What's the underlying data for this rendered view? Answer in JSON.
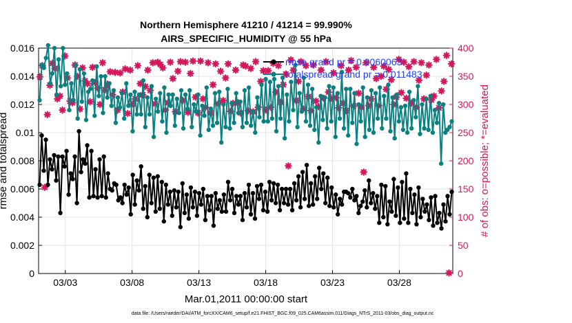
{
  "chart_data": {
    "type": "line",
    "title": "Northern Hemisphere 41210 / 41214 = 99.990%",
    "subtitle": "AIRS_SPECIFIC_HUMIDITY @ 55 hPa",
    "xlabel": "Mar.01,2011 00:00:00 start",
    "ylabel_left": "rmse and totalspread",
    "ylabel_right": "# of obs: o=possible; *=evaluated",
    "x_tick_labels": [
      "03/03",
      "03/08",
      "03/13",
      "03/18",
      "03/23",
      "03/28"
    ],
    "x_tick_days": [
      2,
      7,
      12,
      17,
      22,
      27
    ],
    "xlim_days": [
      0,
      31
    ],
    "ylim_left": [
      0,
      0.016
    ],
    "y_left_ticks": [
      "0",
      "0.002",
      "0.004",
      "0.006",
      "0.008",
      "0.01",
      "0.012",
      "0.014",
      "0.016"
    ],
    "ylim_right": [
      0,
      400
    ],
    "y_right_ticks": [
      "0",
      "50",
      "100",
      "150",
      "200",
      "250",
      "300",
      "350",
      "400"
    ],
    "grid": true,
    "legend_position": "top-right",
    "colors": {
      "rmse": "#000000",
      "spread": "#0a8080",
      "obs": "#d4175c",
      "legend_text": "#1f3fff"
    },
    "series": [
      {
        "name": "rmse grand pr = 0.0060063",
        "axis": "left",
        "color": "#000000",
        "y": [
          0.0063,
          0.0098,
          0.0073,
          0.0095,
          0.0063,
          0.0081,
          0.0074,
          0.0084,
          0.0066,
          0.0083,
          0.0043,
          0.0083,
          0.0076,
          0.0087,
          0.0056,
          0.0071,
          0.0067,
          0.0083,
          0.005,
          0.0101,
          0.0072,
          0.0081,
          0.0078,
          0.0091,
          0.0054,
          0.0087,
          0.0055,
          0.0074,
          0.0054,
          0.0081,
          0.0055,
          0.0083,
          0.0054,
          0.0071,
          0.006,
          0.0059,
          0.0064,
          0.0063,
          0.0052,
          0.0054,
          0.005,
          0.0063,
          0.0056,
          0.0061,
          0.0042,
          0.007,
          0.0049,
          0.0066,
          0.0059,
          0.0076,
          0.0046,
          0.0062,
          0.004,
          0.007,
          0.005,
          0.0068,
          0.0044,
          0.0069,
          0.0046,
          0.0065,
          0.0037,
          0.0063,
          0.0049,
          0.0058,
          0.0041,
          0.0059,
          0.0047,
          0.0058,
          0.0033,
          0.0064,
          0.0043,
          0.0056,
          0.0039,
          0.0061,
          0.0047,
          0.0058,
          0.0041,
          0.0057,
          0.0049,
          0.006,
          0.0038,
          0.0055,
          0.0045,
          0.0055,
          0.0034,
          0.0057,
          0.0046,
          0.0052,
          0.0044,
          0.0056,
          0.0044,
          0.0065,
          0.0052,
          0.006,
          0.0043,
          0.0055,
          0.0049,
          0.0055,
          0.0038,
          0.0057,
          0.0047,
          0.0063,
          0.0042,
          0.0057,
          0.0039,
          0.0062,
          0.0053,
          0.0063,
          0.0045,
          0.0058,
          0.0044,
          0.0065,
          0.0052,
          0.0064,
          0.005,
          0.0063,
          0.0045,
          0.006,
          0.005,
          0.006,
          0.0049,
          0.006,
          0.0045,
          0.0064,
          0.0052,
          0.0069,
          0.0047,
          0.0072,
          0.0053,
          0.0077,
          0.0048,
          0.0064,
          0.0049,
          0.0069,
          0.0053,
          0.0075,
          0.006,
          0.0071,
          0.005,
          0.0068,
          0.0048,
          0.0061,
          0.0047,
          0.0056,
          0.0042,
          0.0053,
          0.0049,
          0.0058,
          0.0058,
          0.0057,
          0.0054,
          0.006,
          0.0052,
          0.0055,
          0.0043,
          0.0048,
          0.0051,
          0.0059,
          0.0047,
          0.0066,
          0.005,
          0.0057,
          0.0046,
          0.0055,
          0.0036,
          0.0063,
          0.004,
          0.0062,
          0.0035,
          0.0051,
          0.0044,
          0.0067,
          0.0041,
          0.0061,
          0.0036,
          0.0065,
          0.0039,
          0.0071,
          0.0036,
          0.006,
          0.0043,
          0.0056,
          0.0035,
          0.0061,
          0.004,
          0.0053,
          0.0044,
          0.0049,
          0.0038,
          0.0054,
          0.0034,
          0.0055,
          0.0036,
          0.0043,
          0.0032,
          0.0049,
          0.0037,
          0.0055,
          0.0042,
          0.0058
        ]
      },
      {
        "name": "totalspread grand pr = 0.011483",
        "axis": "left",
        "color": "#0a8080",
        "y": [
          0.0123,
          0.0148,
          0.0146,
          0.0153,
          0.0162,
          0.0135,
          0.0142,
          0.016,
          0.0127,
          0.0152,
          0.0133,
          0.016,
          0.0134,
          0.0142,
          0.0116,
          0.0135,
          0.0123,
          0.0148,
          0.011,
          0.0145,
          0.0122,
          0.0142,
          0.0109,
          0.0129,
          0.0131,
          0.0137,
          0.0112,
          0.0147,
          0.0126,
          0.014,
          0.0114,
          0.014,
          0.0125,
          0.0135,
          0.0119,
          0.013,
          0.0107,
          0.0125,
          0.0118,
          0.0128,
          0.011,
          0.0135,
          0.0119,
          0.0127,
          0.0101,
          0.0129,
          0.0113,
          0.0127,
          0.0113,
          0.0137,
          0.0104,
          0.0125,
          0.0113,
          0.0133,
          0.0097,
          0.0124,
          0.0115,
          0.0128,
          0.0108,
          0.0132,
          0.01,
          0.0127,
          0.0119,
          0.0127,
          0.0105,
          0.0124,
          0.0114,
          0.013,
          0.0103,
          0.0127,
          0.0117,
          0.013,
          0.0104,
          0.012,
          0.0115,
          0.0127,
          0.0098,
          0.0119,
          0.0112,
          0.0132,
          0.0102,
          0.0117,
          0.0105,
          0.0128,
          0.0107,
          0.0129,
          0.0093,
          0.012,
          0.0104,
          0.0131,
          0.0103,
          0.0121,
          0.0107,
          0.0128,
          0.0114,
          0.0122,
          0.0104,
          0.013,
          0.0107,
          0.0132,
          0.0105,
          0.0115,
          0.01,
          0.0125,
          0.0111,
          0.0134,
          0.0108,
          0.0138,
          0.0108,
          0.0136,
          0.011,
          0.0138,
          0.0101,
          0.0133,
          0.011,
          0.0139,
          0.0096,
          0.0127,
          0.0108,
          0.0136,
          0.0116,
          0.0148,
          0.0104,
          0.0128,
          0.0115,
          0.0139,
          0.0108,
          0.0134,
          0.0105,
          0.0131,
          0.0102,
          0.0118,
          0.0093,
          0.0126,
          0.0109,
          0.0125,
          0.0103,
          0.0133,
          0.0108,
          0.0132,
          0.0097,
          0.0128,
          0.011,
          0.0143,
          0.0103,
          0.0131,
          0.0098,
          0.0131,
          0.0107,
          0.0128,
          0.0092,
          0.012,
          0.0108,
          0.0132,
          0.0097,
          0.0125,
          0.0102,
          0.013,
          0.01,
          0.0128,
          0.011,
          0.0132,
          0.0103,
          0.0126,
          0.011,
          0.0134,
          0.0101,
          0.0125,
          0.0096,
          0.0127,
          0.0108,
          0.0118,
          0.0102,
          0.0119,
          0.01,
          0.0129,
          0.0103,
          0.0123,
          0.0111,
          0.0133,
          0.0099,
          0.012,
          0.0103,
          0.0124,
          0.0102,
          0.0126,
          0.01,
          0.0116,
          0.0107,
          0.0121,
          0.0078,
          0.012,
          0.01,
          0.0102,
          0.0104,
          0.0108
        ]
      },
      {
        "name": "# of obs evaluated",
        "axis": "right",
        "color": "#d4175c",
        "y": [
          349,
          369,
          153,
          282,
          334,
          373,
          364,
          310,
          315,
          290,
          386,
          347,
          306,
          303,
          370,
          350,
          292,
          365,
          342,
          337,
          305,
          366,
          339,
          329,
          300,
          374,
          326,
          336,
          358,
          317,
          357,
          290,
          356,
          322,
          363,
          284,
          361,
          301,
          310,
          369,
          337,
          317,
          332,
          361,
          325,
          374,
          301,
          375,
          371,
          365,
          290,
          303,
          375,
          346,
          287,
          359,
          376,
          307,
          375,
          286,
          355,
          377,
          313,
          285,
          377,
          310,
          295,
          374,
          285,
          335,
          372,
          301,
          359,
          307,
          347,
          372,
          288,
          302,
          361,
          303,
          285,
          370,
          368,
          289,
          364,
          287,
          376,
          295,
          341,
          360,
          290,
          360,
          295,
          373,
          322,
          369,
          304,
          335,
          354,
          191,
          379,
          361,
          307,
          341,
          376,
          292,
          369,
          314,
          289,
          370,
          306,
          296,
          361,
          311,
          376,
          322,
          311,
          356,
          312,
          294,
          369,
          302,
          289,
          361,
          378,
          297,
          366,
          320,
          295,
          180,
          374,
          298,
          310,
          366,
          346,
          298,
          350,
          368,
          327,
          362,
          344,
          300,
          313,
          380,
          321,
          375,
          311,
          367,
          302,
          376,
          295,
          343,
          374,
          310,
          352,
          370,
          308,
          315,
          380,
          294,
          324,
          341,
          387,
          1,
          372
        ]
      }
    ]
  },
  "footer": {
    "text": "data file: /Users/raeder/DAI/ATM_forcXX/CAM6_setup/f.e21.FHIST_BGC.f09_025.CAM6assim.011/Diags_NTrS_2011-03/obs_diag_output.nc"
  }
}
